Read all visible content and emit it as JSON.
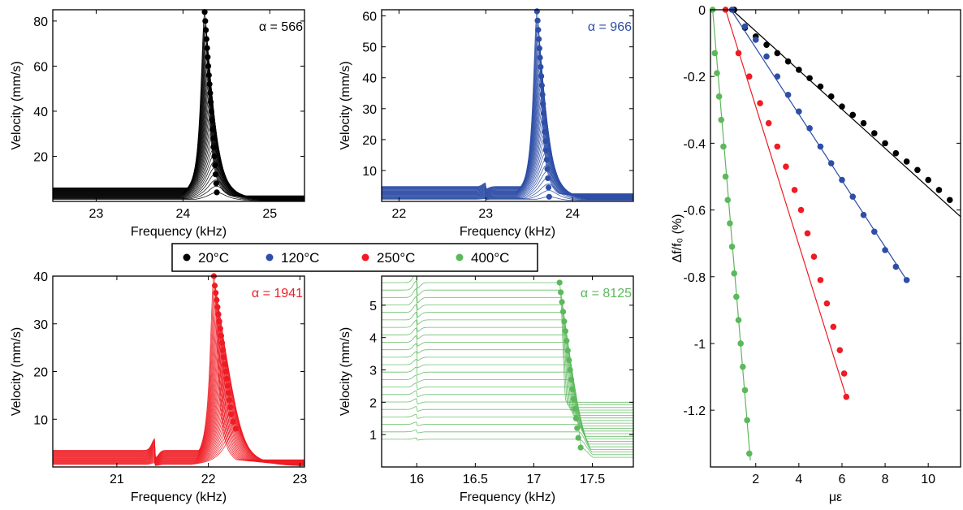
{
  "legend": {
    "entries": [
      {
        "label": "20°C",
        "color": "#000000"
      },
      {
        "label": "120°C",
        "color": "#2e4ea6"
      },
      {
        "label": "250°C",
        "color": "#ee1c24"
      },
      {
        "label": "400°C",
        "color": "#5cb85c"
      }
    ]
  },
  "chart_data": [
    {
      "type": "line",
      "id": "p20",
      "color": "#000000",
      "xlabel": "Frequency (kHz)",
      "ylabel": "Velocity (mm/s)",
      "annotation": "α = 566",
      "xlim": [
        22.5,
        25.4
      ],
      "ylim": [
        0,
        85
      ],
      "xticks": [
        23,
        24,
        25
      ],
      "xtick_labels": [
        "23",
        "24",
        "25"
      ],
      "yticks": [
        20,
        40,
        60,
        80
      ],
      "ytick_labels": [
        "20",
        "40",
        "60",
        "80"
      ],
      "curves": 30,
      "peaks": {
        "f": [
          24.25,
          24.257,
          24.264,
          24.271,
          24.278,
          24.285,
          24.292,
          24.299,
          24.306,
          24.313,
          24.32,
          24.327,
          24.334,
          24.341,
          24.348,
          24.355,
          24.362,
          24.369,
          24.376,
          24.383,
          24.39
        ],
        "v": [
          84,
          80,
          76,
          72,
          68,
          64,
          60,
          56,
          52,
          48,
          44,
          40,
          36,
          32,
          28,
          24,
          20,
          16,
          12,
          8,
          4
        ]
      },
      "baseline_left": 6,
      "baseline_right": 2.5,
      "bump": null
    },
    {
      "type": "line",
      "id": "p120",
      "color": "#2e4ea6",
      "xlabel": "Frequency (kHz)",
      "ylabel": "Velocity (mm/s)",
      "annotation": "α = 966",
      "xlim": [
        21.8,
        24.7
      ],
      "ylim": [
        0,
        62
      ],
      "xticks": [
        22,
        23,
        24
      ],
      "xtick_labels": [
        "22",
        "23",
        "24"
      ],
      "yticks": [
        10,
        20,
        30,
        40,
        50,
        60
      ],
      "ytick_labels": [
        "10",
        "20",
        "30",
        "40",
        "50",
        "60"
      ],
      "curves": 30,
      "peaks": {
        "f": [
          23.59,
          23.597,
          23.604,
          23.611,
          23.618,
          23.625,
          23.632,
          23.639,
          23.646,
          23.653,
          23.66,
          23.667,
          23.674,
          23.681,
          23.688,
          23.695,
          23.702,
          23.709,
          23.716,
          23.723,
          23.73
        ],
        "v": [
          61.5,
          58.5,
          55.5,
          52.5,
          49.5,
          46.5,
          43.5,
          40.5,
          37.5,
          34.5,
          31.5,
          28.5,
          25.5,
          22.5,
          19.5,
          16.5,
          13.5,
          10.5,
          7.5,
          4.5,
          1.5
        ]
      },
      "baseline_left": 4.8,
      "baseline_right": 2.5,
      "bump": {
        "x": 23.0,
        "h": 1.2,
        "w": 0.05
      }
    },
    {
      "type": "line",
      "id": "p250",
      "color": "#ee1c24",
      "xlabel": "Frequency (kHz)",
      "ylabel": "Velocity (mm/s)",
      "annotation": "α = 1941",
      "xlim": [
        20.3,
        23.05
      ],
      "ylim": [
        0,
        40
      ],
      "xticks": [
        21,
        22,
        23
      ],
      "xtick_labels": [
        "21",
        "22",
        "23"
      ],
      "yticks": [
        10,
        20,
        30,
        40
      ],
      "ytick_labels": [
        "10",
        "20",
        "30",
        "40"
      ],
      "curves": 28,
      "peaks": {
        "f": [
          22.06,
          22.07,
          22.08,
          22.09,
          22.1,
          22.11,
          22.12,
          22.13,
          22.14,
          22.15,
          22.16,
          22.17,
          22.18,
          22.19,
          22.2,
          22.21,
          22.22,
          22.23,
          22.24,
          22.25,
          22.27,
          22.3
        ],
        "v": [
          40,
          38,
          36.5,
          35,
          33.5,
          32,
          30.5,
          29,
          27.5,
          26,
          24.5,
          23,
          21.5,
          20,
          18.5,
          17,
          15.5,
          14,
          12.5,
          11,
          9.5,
          8
        ]
      },
      "baseline_left": 3.5,
      "baseline_right": 1.5,
      "bump": {
        "x": 21.42,
        "h": 2.5,
        "w": 0.05
      }
    },
    {
      "type": "line",
      "id": "p400",
      "color": "#5cb85c",
      "xlabel": "Frequency (kHz)",
      "ylabel": "Velocity (mm/s)",
      "annotation": "α = 8125",
      "xlim": [
        15.7,
        17.85
      ],
      "ylim": [
        0,
        5.9
      ],
      "xticks": [
        16,
        16.5,
        17,
        17.5
      ],
      "xtick_labels": [
        "16",
        "16.5",
        "17",
        "17.5"
      ],
      "yticks": [
        1,
        2,
        3,
        4,
        5
      ],
      "ytick_labels": [
        "1",
        "2",
        "3",
        "4",
        "5"
      ],
      "curves": 22,
      "peaks": {
        "f": [
          17.22,
          17.23,
          17.24,
          17.25,
          17.26,
          17.27,
          17.28,
          17.29,
          17.3,
          17.31,
          17.32,
          17.33,
          17.34,
          17.35,
          17.36,
          17.37,
          17.38,
          17.4
        ],
        "v": [
          5.7,
          5.4,
          5.1,
          4.8,
          4.5,
          4.2,
          3.9,
          3.6,
          3.3,
          3.0,
          2.7,
          2.4,
          2.1,
          1.8,
          1.5,
          1.2,
          0.9,
          0.6
        ]
      },
      "baseline_left": 5.7,
      "baseline_right": 2.0,
      "bump": {
        "x": 16.0,
        "h": 0.3,
        "w": 0.04
      }
    },
    {
      "type": "scatter",
      "id": "strain",
      "xlabel": "με",
      "ylabel": "Δf/f₀ (%)",
      "xlim": [
        -0.1,
        11.5
      ],
      "ylim": [
        -1.37,
        0
      ],
      "xticks": [
        2,
        4,
        6,
        8,
        10
      ],
      "xtick_labels": [
        "2",
        "4",
        "6",
        "8",
        "10"
      ],
      "yticks": [
        0,
        -0.2,
        -0.4,
        -0.6,
        -0.8,
        -1,
        -1.2
      ],
      "ytick_labels": [
        "0",
        "-0.2",
        "-0.4",
        "-0.6",
        "-0.8",
        "-1",
        "-1.2"
      ],
      "series": [
        {
          "name": "20°C",
          "color": "#000000",
          "x": [
            1.0,
            1.5,
            2.0,
            2.5,
            3.0,
            3.5,
            4.0,
            4.5,
            5.0,
            5.5,
            6.0,
            6.5,
            7.0,
            7.5,
            8.0,
            8.5,
            9.0,
            9.5,
            10.0,
            10.5,
            11.0
          ],
          "y": [
            0,
            -0.054,
            -0.08,
            -0.105,
            -0.13,
            -0.155,
            -0.18,
            -0.205,
            -0.23,
            -0.26,
            -0.29,
            -0.315,
            -0.34,
            -0.37,
            -0.4,
            -0.43,
            -0.455,
            -0.48,
            -0.51,
            -0.54,
            -0.57
          ],
          "fit": [
            [
              0.9,
              0.0
            ],
            [
              11.5,
              -0.62
            ]
          ]
        },
        {
          "name": "120°C",
          "color": "#2e4ea6",
          "x": [
            0.9,
            1.5,
            2.0,
            2.5,
            3.0,
            3.5,
            4.0,
            4.5,
            5.0,
            5.5,
            6.0,
            6.5,
            7.0,
            7.5,
            8.0,
            8.5,
            9.0
          ],
          "y": [
            0,
            -0.05,
            -0.09,
            -0.14,
            -0.2,
            -0.255,
            -0.305,
            -0.355,
            -0.41,
            -0.46,
            -0.51,
            -0.56,
            -0.615,
            -0.665,
            -0.72,
            -0.77,
            -0.81
          ],
          "fit": [
            [
              0.85,
              0.0
            ],
            [
              9.0,
              -0.81
            ]
          ]
        },
        {
          "name": "250°C",
          "color": "#ee1c24",
          "x": [
            0.6,
            1.2,
            1.7,
            2.2,
            2.6,
            3.0,
            3.4,
            3.8,
            4.1,
            4.4,
            4.7,
            5.0,
            5.3,
            5.6,
            5.9,
            6.1,
            6.2
          ],
          "y": [
            0,
            -0.13,
            -0.2,
            -0.28,
            -0.34,
            -0.41,
            -0.47,
            -0.54,
            -0.6,
            -0.67,
            -0.74,
            -0.81,
            -0.88,
            -0.95,
            -1.02,
            -1.09,
            -1.16
          ],
          "fit": [
            [
              0.6,
              0.0
            ],
            [
              6.2,
              -1.16
            ]
          ]
        },
        {
          "name": "400°C",
          "color": "#5cb85c",
          "x": [
            0.0,
            0.1,
            0.2,
            0.3,
            0.4,
            0.5,
            0.6,
            0.7,
            0.8,
            0.9,
            1.0,
            1.1,
            1.2,
            1.3,
            1.4,
            1.5,
            1.6,
            1.7
          ],
          "y": [
            0,
            -0.13,
            -0.19,
            -0.26,
            -0.33,
            -0.41,
            -0.5,
            -0.57,
            -0.64,
            -0.71,
            -0.79,
            -0.86,
            -0.93,
            -1.0,
            -1.07,
            -1.14,
            -1.23,
            -1.33
          ],
          "fit": [
            [
              0.0,
              0.0
            ],
            [
              1.75,
              -1.35
            ]
          ]
        }
      ]
    }
  ]
}
